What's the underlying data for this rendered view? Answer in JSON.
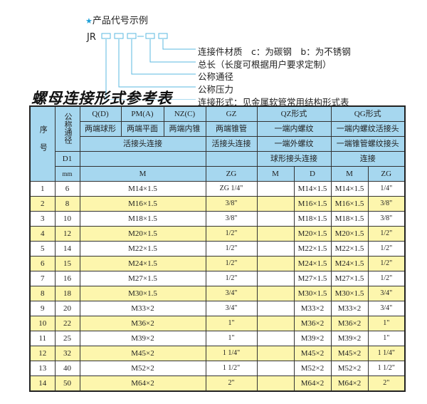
{
  "code_example": {
    "title": "产品代号示例",
    "prefix": "JR",
    "separator": "-",
    "labels": [
      "连接件材质　c：为碳钢　b：为不锈钢",
      "总长（长度可根据用户要求定制）",
      "公称通径",
      "公称压力",
      "连接形式：见金属软管常用结构形式表"
    ]
  },
  "table_title": "螺母连接形式参考表",
  "header": {
    "seq": "序号",
    "nominal": "公称通径",
    "d1": "D1",
    "mm": "mm",
    "row1": [
      "Q(D)",
      "PM(A)",
      "NZ(C)",
      "GZ",
      "QZ形式",
      "QG形式"
    ],
    "row2": [
      "两端球形",
      "两端平面",
      "两端内锥",
      "两端锥管",
      "一端内螺纹",
      "一端内螺纹活接头"
    ],
    "row3": [
      "活接头连接",
      "活接头连接",
      "一端外螺纹",
      "一端锥管螺纹接头"
    ],
    "row4": [
      "球形接头连接",
      "连接"
    ],
    "row5": [
      "M",
      "ZG",
      "M",
      "D",
      "M",
      "ZG"
    ]
  },
  "rows": [
    [
      "1",
      "6",
      "M14×1.5",
      "ZG 1/4\"",
      "",
      "M14×1.5",
      "M14×1.5",
      "1/4\""
    ],
    [
      "2",
      "8",
      "M16×1.5",
      "3/8\"",
      "",
      "M16×1.5",
      "M16×1.5",
      "3/8\""
    ],
    [
      "3",
      "10",
      "M18×1.5",
      "3/8\"",
      "",
      "M18×1.5",
      "M18×1.5",
      "3/8\""
    ],
    [
      "4",
      "12",
      "M20×1.5",
      "1/2\"",
      "",
      "M20×1.5",
      "M20×1.5",
      "1/2\""
    ],
    [
      "5",
      "14",
      "M22×1.5",
      "1/2\"",
      "",
      "M22×1.5",
      "M22×1.5",
      "1/2\""
    ],
    [
      "6",
      "15",
      "M24×1.5",
      "1/2\"",
      "",
      "M24×1.5",
      "M24×1.5",
      "1/2\""
    ],
    [
      "7",
      "16",
      "M27×1.5",
      "1/2\"",
      "",
      "M27×1.5",
      "M27×1.5",
      "1/2\""
    ],
    [
      "8",
      "18",
      "M30×1.5",
      "3/4\"",
      "",
      "M30×1.5",
      "M30×1.5",
      "3/4\""
    ],
    [
      "9",
      "20",
      "M33×2",
      "3/4\"",
      "",
      "M33×2",
      "M33×2",
      "3/4\""
    ],
    [
      "10",
      "22",
      "M36×2",
      "1\"",
      "",
      "M36×2",
      "M36×2",
      "1\""
    ],
    [
      "11",
      "25",
      "M39×2",
      "1\"",
      "",
      "M39×2",
      "M39×2",
      "1\""
    ],
    [
      "12",
      "32",
      "M45×2",
      "1 1/4\"",
      "",
      "M45×2",
      "M45×2",
      "1 1/4\""
    ],
    [
      "13",
      "40",
      "M52×2",
      "1 1/2\"",
      "",
      "M52×2",
      "M52×2",
      "1 1/2\""
    ],
    [
      "14",
      "50",
      "M64×2",
      "2\"",
      "",
      "M64×2",
      "M64×2",
      "2\""
    ]
  ],
  "colors": {
    "header_bg": "#a6d7ef",
    "alt_row_bg": "#fdf6ad",
    "accent": "#1ea0d8"
  }
}
